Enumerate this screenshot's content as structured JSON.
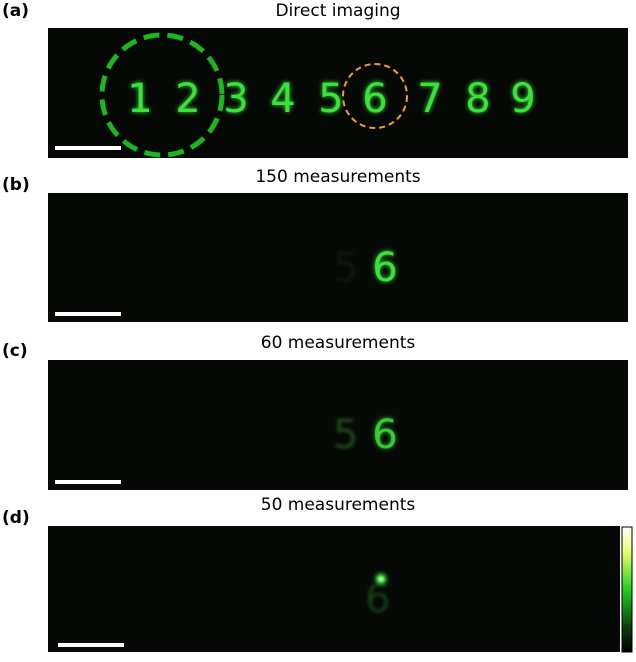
{
  "panels": [
    {
      "label": "(a)",
      "title": "Direct imaging",
      "digits": [
        "1",
        "2",
        "3",
        "4",
        "5",
        "6",
        "7",
        "8",
        "9"
      ]
    },
    {
      "label": "(b)",
      "title": "150 measurements",
      "digits": [
        "6"
      ]
    },
    {
      "label": "(c)",
      "title": "60 measurements",
      "digits": [
        "6"
      ]
    },
    {
      "label": "(d)",
      "title": "50 measurements"
    }
  ]
}
